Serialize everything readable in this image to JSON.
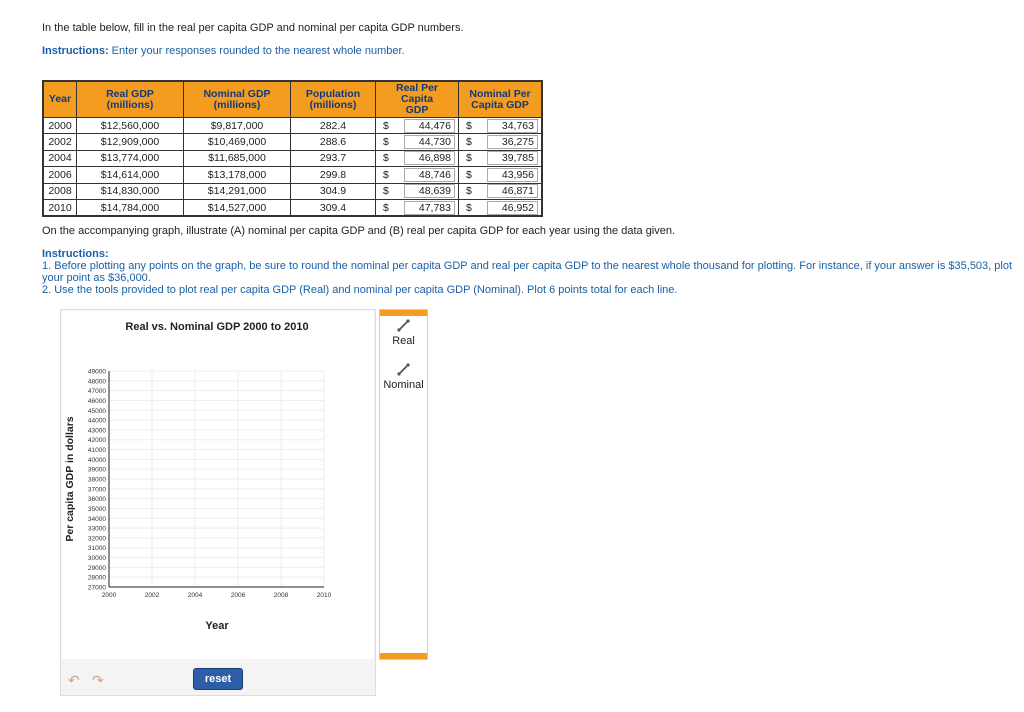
{
  "intro": {
    "text": "In the table below, fill in the real per capita GDP and nominal per capita GDP numbers.",
    "instructions_label": "Instructions:",
    "instructions_text": " Enter your responses rounded to the nearest whole number."
  },
  "table": {
    "headers": {
      "year": "Year",
      "real_gdp_1": "Real GDP",
      "real_gdp_2": "(millions)",
      "nominal_gdp_1": "Nominal GDP",
      "nominal_gdp_2": "(millions)",
      "population_1": "Population",
      "population_2": "(millions)",
      "real_pc_1": "Real Per Capita",
      "real_pc_2": "GDP",
      "nominal_pc_1": "Nominal Per",
      "nominal_pc_2": "Capita GDP"
    },
    "currency_symbol": "$",
    "rows": [
      {
        "year": "2000",
        "real_gdp": "$12,560,000",
        "nominal_gdp": "$9,817,000",
        "population": "282.4",
        "real_pc": "44,476",
        "nominal_pc": "34,763"
      },
      {
        "year": "2002",
        "real_gdp": "$12,909,000",
        "nominal_gdp": "$10,469,000",
        "population": "288.6",
        "real_pc": "44,730",
        "nominal_pc": "36,275"
      },
      {
        "year": "2004",
        "real_gdp": "$13,774,000",
        "nominal_gdp": "$11,685,000",
        "population": "293.7",
        "real_pc": "46,898",
        "nominal_pc": "39,785"
      },
      {
        "year": "2006",
        "real_gdp": "$14,614,000",
        "nominal_gdp": "$13,178,000",
        "population": "299.8",
        "real_pc": "48,746",
        "nominal_pc": "43,956"
      },
      {
        "year": "2008",
        "real_gdp": "$14,830,000",
        "nominal_gdp": "$14,291,000",
        "population": "304.9",
        "real_pc": "48,639",
        "nominal_pc": "46,871"
      },
      {
        "year": "2010",
        "real_gdp": "$14,784,000",
        "nominal_gdp": "$14,527,000",
        "population": "309.4",
        "real_pc": "47,783",
        "nominal_pc": "46,952"
      }
    ]
  },
  "graph_text": {
    "prompt": "On the accompanying graph, illustrate (A) nominal per capita GDP and (B) real per capita GDP for each year using the data given.",
    "instructions_label": "Instructions:",
    "step1": "1. Before plotting any points on the graph, be sure to round the nominal per capita GDP and real per capita GDP to the nearest whole thousand for plotting. For instance, if your answer is $35,503, plot",
    "step1b": "your point as $36,000.",
    "step2": "2. Use the tools provided to plot real per capita GDP (Real) and nominal per capita GDP (Nominal). Plot 6 points total for each line."
  },
  "tools": {
    "real_label": "Real",
    "nominal_label": "Nominal",
    "reset_label": "reset",
    "pencil_icon": "pencil-icon",
    "undo_icon": "undo-icon",
    "redo_icon": "redo-icon"
  },
  "chart_data": {
    "type": "line",
    "title": "Real vs. Nominal GDP 2000 to 2010",
    "xlabel": "Year",
    "ylabel": "Per capita GDP in dollars",
    "x_ticks": [
      "2000",
      "2002",
      "2004",
      "2006",
      "2008",
      "2010"
    ],
    "y_ticks": [
      "27000",
      "28000",
      "29000",
      "30000",
      "31000",
      "32000",
      "33000",
      "34000",
      "35000",
      "36000",
      "37000",
      "38000",
      "39000",
      "40000",
      "41000",
      "42000",
      "43000",
      "44000",
      "45000",
      "46000",
      "47000",
      "48000",
      "49000"
    ],
    "xlim": [
      2000,
      2010
    ],
    "ylim": [
      27000,
      49000
    ],
    "grid": true,
    "series": []
  }
}
